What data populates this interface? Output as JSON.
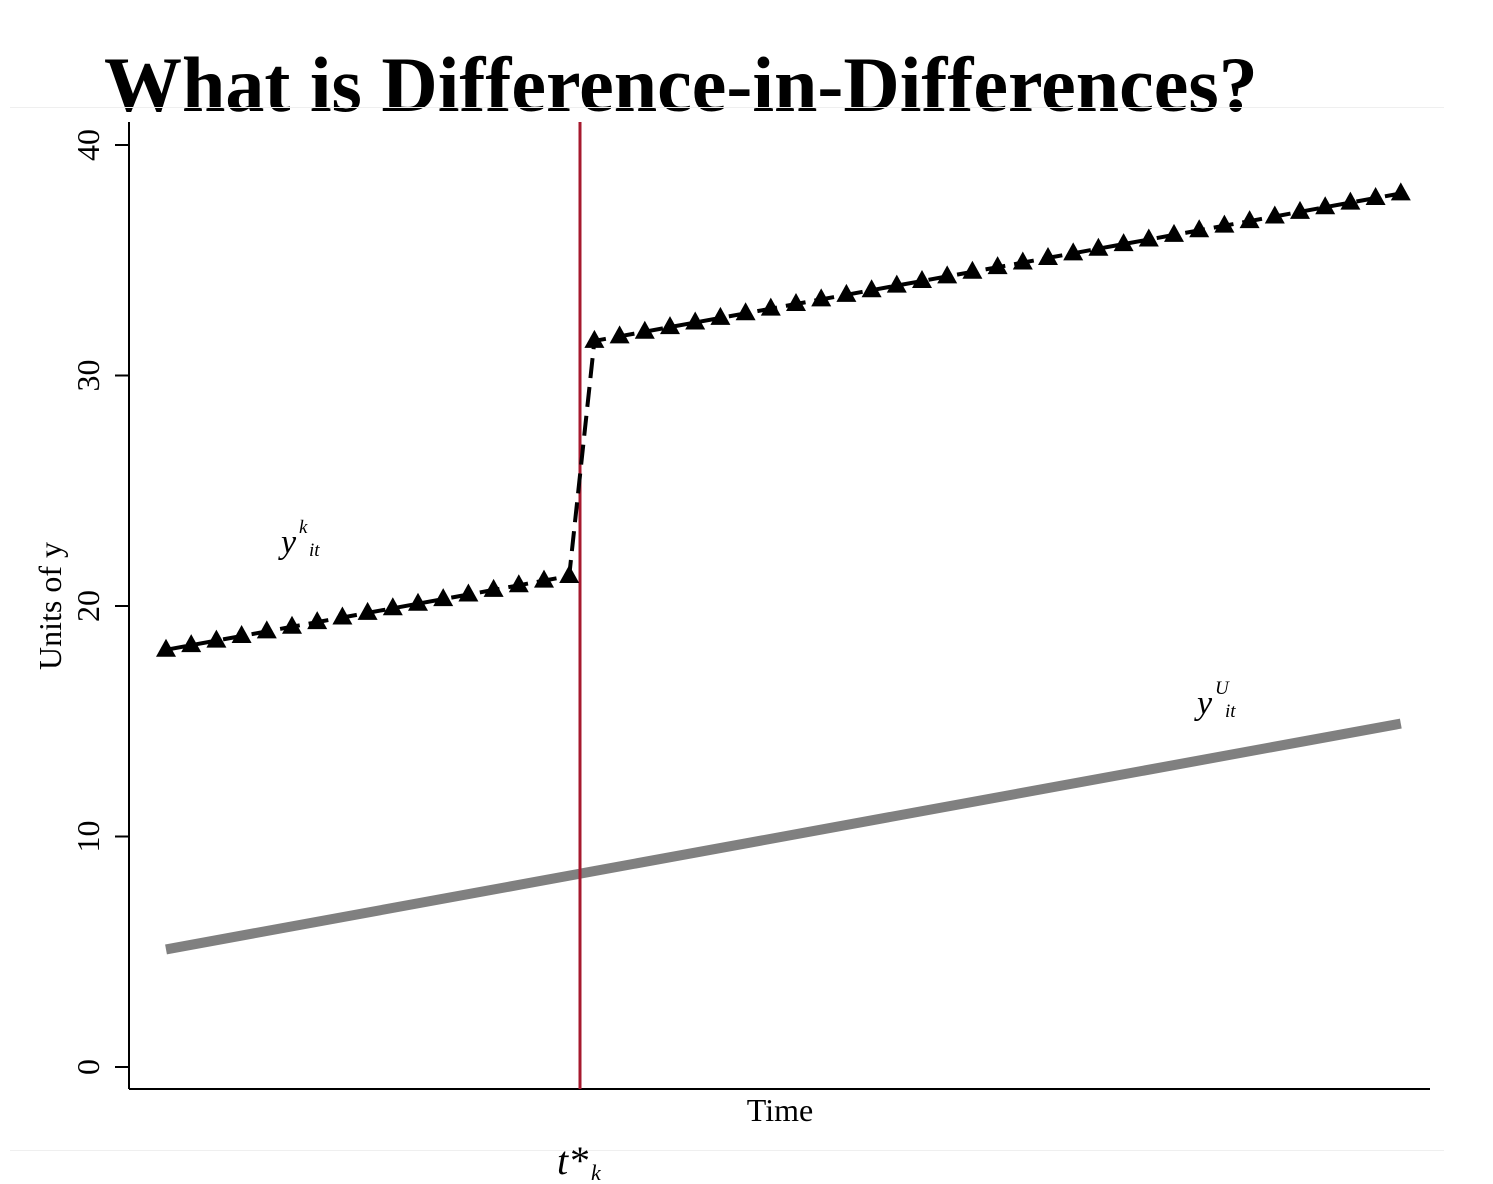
{
  "slide": {
    "title": "What is Difference-in-Differences?"
  },
  "chart_data": {
    "type": "line",
    "title": "",
    "xlabel": "Time",
    "ylabel": "Units of y",
    "ylim": [
      0,
      40
    ],
    "yticks": [
      0,
      10,
      20,
      30,
      40
    ],
    "grid": false,
    "legend": "none",
    "treatment_time_label": {
      "main": "t*",
      "sub": "k"
    },
    "treatment_line_color": "#a6192e",
    "series": [
      {
        "label": {
          "main": "y",
          "sup": "k",
          "sub": "it"
        },
        "style": "dashed-triangles",
        "color": "#000000",
        "x": [
          1,
          2,
          3,
          4,
          5,
          6,
          7,
          8,
          9,
          10,
          11,
          12,
          13,
          14,
          15,
          16,
          17,
          18,
          19,
          20,
          21,
          22,
          23,
          24,
          25,
          26,
          27,
          28,
          29,
          30,
          31,
          32,
          33,
          34,
          35,
          36,
          37,
          38,
          39,
          40,
          41,
          42,
          43,
          44,
          45,
          46,
          47,
          48,
          49,
          50
        ],
        "y": [
          18.1,
          18.3,
          18.5,
          18.7,
          18.9,
          19.1,
          19.3,
          19.5,
          19.7,
          19.9,
          20.1,
          20.3,
          20.5,
          20.7,
          20.9,
          21.1,
          21.3,
          31.5,
          31.7,
          31.9,
          32.1,
          32.3,
          32.5,
          32.7,
          32.9,
          33.1,
          33.3,
          33.5,
          33.7,
          33.9,
          34.1,
          34.3,
          34.5,
          34.7,
          34.9,
          35.1,
          35.3,
          35.5,
          35.7,
          35.9,
          36.1,
          36.3,
          36.5,
          36.7,
          36.9,
          37.1,
          37.3,
          37.5,
          37.7,
          37.9
        ]
      },
      {
        "label": {
          "main": "y",
          "sup": "U",
          "sub": "it"
        },
        "style": "solid-thick",
        "color": "#808080",
        "x": [
          1,
          50
        ],
        "y": [
          5.1,
          14.9
        ]
      }
    ]
  }
}
